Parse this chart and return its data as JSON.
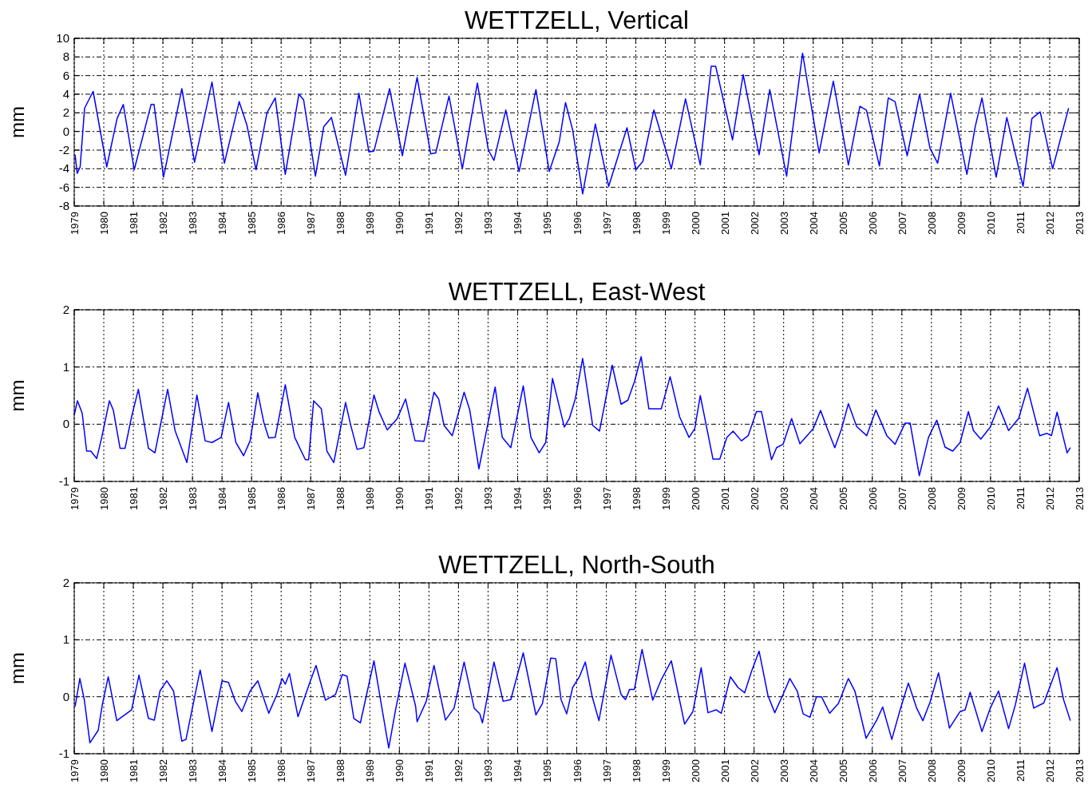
{
  "chart_data": [
    {
      "type": "line",
      "title": "WETTZELL, Vertical",
      "ylabel": "mm",
      "color": "#0000ff",
      "grid": true,
      "line_style": "solid",
      "xlim": [
        1979,
        2013
      ],
      "xticks": [
        1979,
        1980,
        1981,
        1982,
        1983,
        1984,
        1985,
        1986,
        1987,
        1988,
        1989,
        1990,
        1991,
        1992,
        1993,
        1994,
        1995,
        1996,
        1997,
        1998,
        1999,
        2000,
        2001,
        2002,
        2003,
        2004,
        2005,
        2006,
        2007,
        2008,
        2009,
        2010,
        2011,
        2012,
        2013
      ],
      "ylim": [
        -8,
        10
      ],
      "yticks": [
        -8,
        -6,
        -4,
        -2,
        0,
        2,
        4,
        6,
        8,
        10
      ],
      "x": [
        1979.03,
        1979.1,
        1979.2,
        1979.35,
        1979.64,
        1980.1,
        1980.45,
        1980.66,
        1981.03,
        1981.6,
        1981.7,
        1982.02,
        1982.64,
        1983.07,
        1983.66,
        1984.08,
        1984.58,
        1984.84,
        1985.15,
        1985.52,
        1985.8,
        1986.14,
        1986.6,
        1986.76,
        1987.16,
        1987.44,
        1987.7,
        1988.18,
        1988.63,
        1988.97,
        1989.14,
        1989.67,
        1990.1,
        1990.6,
        1991.06,
        1991.23,
        1991.68,
        1992.13,
        1992.64,
        1993.01,
        1993.2,
        1993.6,
        1994.05,
        1994.62,
        1995.07,
        1995.41,
        1995.62,
        1995.86,
        1996.2,
        1996.63,
        1997.08,
        1997.7,
        1998.0,
        1998.24,
        1998.61,
        1999.2,
        1999.68,
        2000.18,
        2000.55,
        2000.7,
        2001.27,
        2001.63,
        2002.17,
        2002.53,
        2003.1,
        2003.64,
        2004.2,
        2004.68,
        2005.19,
        2005.58,
        2005.8,
        2006.24,
        2006.54,
        2006.77,
        2007.18,
        2007.6,
        2007.95,
        2008.21,
        2008.65,
        2009.2,
        2009.48,
        2009.71,
        2010.19,
        2010.55,
        2011.1,
        2011.4,
        2011.68,
        2012.1,
        2012.64
      ],
      "values": [
        -2.5,
        -4.5,
        -3.8,
        2.5,
        4.3,
        -3.8,
        1.4,
        2.9,
        -4.1,
        2.9,
        2.9,
        -4.9,
        4.6,
        -3.3,
        5.3,
        -3.4,
        3.2,
        0.7,
        -4.1,
        2.0,
        3.6,
        -4.6,
        4.0,
        3.4,
        -4.8,
        0.5,
        1.5,
        -4.7,
        4.1,
        -2.2,
        -2.1,
        4.6,
        -2.6,
        5.8,
        -2.4,
        -2.3,
        3.8,
        -4.0,
        5.2,
        -2.0,
        -3.1,
        2.3,
        -4.3,
        4.5,
        -4.3,
        -1.1,
        3.1,
        0.2,
        -6.7,
        0.8,
        -5.9,
        0.4,
        -4.1,
        -3.2,
        2.3,
        -4.0,
        3.5,
        -3.6,
        7.0,
        7.0,
        -0.9,
        6.1,
        -2.5,
        4.5,
        -4.8,
        8.4,
        -2.3,
        5.4,
        -3.6,
        2.7,
        2.3,
        -3.7,
        3.6,
        3.2,
        -2.6,
        4.0,
        -1.8,
        -3.4,
        4.1,
        -4.6,
        0.5,
        3.6,
        -4.9,
        1.5,
        -5.9,
        1.4,
        2.1,
        -4.0,
        2.5
      ]
    },
    {
      "type": "line",
      "title": "WETTZELL, East-West",
      "ylabel": "mm",
      "color": "#0000ff",
      "grid": true,
      "line_style": "solid",
      "xlim": [
        1979,
        2013
      ],
      "xticks": [
        1979,
        1980,
        1981,
        1982,
        1983,
        1984,
        1985,
        1986,
        1987,
        1988,
        1989,
        1990,
        1991,
        1992,
        1993,
        1994,
        1995,
        1996,
        1997,
        1998,
        1999,
        2000,
        2001,
        2002,
        2003,
        2004,
        2005,
        2006,
        2007,
        2008,
        2009,
        2010,
        2011,
        2012,
        2013
      ],
      "ylim": [
        -1,
        2
      ],
      "yticks": [
        -1,
        0,
        1,
        2
      ],
      "x": [
        1979.0,
        1979.11,
        1979.27,
        1979.42,
        1979.56,
        1979.76,
        1979.93,
        1980.19,
        1980.32,
        1980.55,
        1980.72,
        1980.94,
        1981.17,
        1981.51,
        1981.73,
        1982.16,
        1982.41,
        1982.81,
        1983.15,
        1983.43,
        1983.66,
        1983.97,
        1984.22,
        1984.47,
        1984.73,
        1984.95,
        1985.21,
        1985.41,
        1985.58,
        1985.8,
        1986.14,
        1986.46,
        1986.82,
        1986.93,
        1987.1,
        1987.36,
        1987.55,
        1987.78,
        1988.18,
        1988.34,
        1988.57,
        1988.8,
        1989.14,
        1989.31,
        1989.59,
        1989.93,
        1990.21,
        1990.53,
        1990.83,
        1991.17,
        1991.33,
        1991.51,
        1991.79,
        1992.19,
        1992.38,
        1992.69,
        1993.24,
        1993.48,
        1993.77,
        1994.19,
        1994.45,
        1994.73,
        1994.95,
        1995.18,
        1995.58,
        1995.75,
        1995.95,
        1996.2,
        1996.54,
        1996.77,
        1997.2,
        1997.5,
        1997.73,
        1997.95,
        1998.18,
        1998.44,
        1998.86,
        1999.16,
        1999.48,
        1999.8,
        1999.99,
        2000.18,
        2000.61,
        2000.84,
        2001.08,
        2001.29,
        2001.57,
        2001.8,
        2002.08,
        2002.25,
        2002.59,
        2002.76,
        2002.98,
        2003.27,
        2003.55,
        2004.0,
        2004.25,
        2004.45,
        2004.73,
        2004.96,
        2005.19,
        2005.47,
        2005.81,
        2006.12,
        2006.49,
        2006.77,
        2007.11,
        2007.28,
        2007.59,
        2007.9,
        2008.18,
        2008.46,
        2008.72,
        2008.97,
        2009.25,
        2009.42,
        2009.67,
        2009.99,
        2010.27,
        2010.61,
        2010.95,
        2011.25,
        2011.66,
        2011.91,
        2012.06,
        2012.25,
        2012.59,
        2012.7
      ],
      "values": [
        0.16,
        0.41,
        0.19,
        -0.47,
        -0.47,
        -0.6,
        -0.23,
        0.41,
        0.25,
        -0.42,
        -0.42,
        0.13,
        0.61,
        -0.42,
        -0.5,
        0.61,
        -0.11,
        -0.67,
        0.51,
        -0.29,
        -0.32,
        -0.23,
        0.38,
        -0.32,
        -0.55,
        -0.29,
        0.55,
        0.04,
        -0.24,
        -0.23,
        0.69,
        -0.23,
        -0.62,
        -0.62,
        0.41,
        0.27,
        -0.47,
        -0.67,
        0.38,
        0.01,
        -0.44,
        -0.41,
        0.51,
        0.22,
        -0.1,
        0.1,
        0.44,
        -0.29,
        -0.3,
        0.56,
        0.44,
        -0.02,
        -0.2,
        0.56,
        0.25,
        -0.78,
        0.65,
        -0.23,
        -0.41,
        0.67,
        -0.23,
        -0.5,
        -0.32,
        0.8,
        -0.05,
        0.1,
        0.44,
        1.15,
        -0.02,
        -0.12,
        1.03,
        0.35,
        0.42,
        0.74,
        1.18,
        0.27,
        0.27,
        0.83,
        0.13,
        -0.23,
        -0.08,
        0.5,
        -0.61,
        -0.61,
        -0.23,
        -0.12,
        -0.29,
        -0.2,
        0.22,
        0.22,
        -0.62,
        -0.41,
        -0.35,
        0.1,
        -0.34,
        -0.08,
        0.24,
        -0.04,
        -0.41,
        -0.08,
        0.36,
        -0.04,
        -0.2,
        0.25,
        -0.2,
        -0.35,
        0.02,
        0.02,
        -0.9,
        -0.23,
        0.07,
        -0.4,
        -0.47,
        -0.32,
        0.22,
        -0.11,
        -0.26,
        -0.05,
        0.32,
        -0.11,
        0.1,
        0.63,
        -0.2,
        -0.16,
        -0.2,
        0.21,
        -0.5,
        -0.41
      ]
    },
    {
      "type": "line",
      "title": "WETTZELL, North-South",
      "ylabel": "mm",
      "color": "#0000ff",
      "grid": true,
      "line_style": "solid",
      "xlim": [
        1979,
        2013
      ],
      "xticks": [
        1979,
        1980,
        1981,
        1982,
        1983,
        1984,
        1985,
        1986,
        1987,
        1988,
        1989,
        1990,
        1991,
        1992,
        1993,
        1994,
        1995,
        1996,
        1997,
        1998,
        1999,
        2000,
        2001,
        2002,
        2003,
        2004,
        2005,
        2006,
        2007,
        2008,
        2009,
        2010,
        2011,
        2012,
        2013
      ],
      "ylim": [
        -1,
        2
      ],
      "yticks": [
        -1,
        0,
        1,
        2
      ],
      "x": [
        1979.03,
        1979.19,
        1979.34,
        1979.53,
        1979.81,
        1979.95,
        1980.15,
        1980.44,
        1980.94,
        1981.19,
        1981.51,
        1981.71,
        1981.9,
        1982.13,
        1982.36,
        1982.64,
        1982.78,
        1983.26,
        1983.66,
        1984.0,
        1984.22,
        1984.45,
        1984.67,
        1984.95,
        1985.21,
        1985.58,
        1985.86,
        1986.03,
        1986.14,
        1986.28,
        1986.57,
        1986.93,
        1987.18,
        1987.5,
        1987.84,
        1988.07,
        1988.23,
        1988.46,
        1988.68,
        1989.14,
        1989.42,
        1989.64,
        1989.87,
        1990.19,
        1990.55,
        1990.6,
        1990.91,
        1991.17,
        1991.56,
        1991.85,
        1992.19,
        1992.53,
        1992.72,
        1992.81,
        1993.2,
        1993.51,
        1993.77,
        1994.19,
        1994.62,
        1994.84,
        1995.12,
        1995.29,
        1995.47,
        1995.66,
        1995.86,
        1996.09,
        1996.29,
        1996.52,
        1996.75,
        1997.16,
        1997.5,
        1997.65,
        1997.79,
        1997.95,
        1998.21,
        1998.57,
        1998.86,
        1999.2,
        1999.65,
        1999.93,
        2000.21,
        2000.44,
        2000.72,
        2000.89,
        2001.2,
        2001.46,
        2001.68,
        2001.91,
        2002.17,
        2002.47,
        2002.7,
        2002.98,
        2003.21,
        2003.46,
        2003.66,
        2003.89,
        2004.11,
        2004.28,
        2004.56,
        2004.85,
        2005.19,
        2005.41,
        2005.79,
        2006.15,
        2006.35,
        2006.66,
        2006.94,
        2007.22,
        2007.5,
        2007.71,
        2007.95,
        2008.24,
        2008.61,
        2008.97,
        2009.14,
        2009.31,
        2009.71,
        2009.99,
        2010.27,
        2010.61,
        2010.84,
        2011.15,
        2011.46,
        2011.8,
        2012.25,
        2012.47,
        2012.7
      ],
      "values": [
        -0.17,
        0.32,
        -0.05,
        -0.81,
        -0.59,
        -0.14,
        0.35,
        -0.42,
        -0.23,
        0.38,
        -0.38,
        -0.41,
        0.1,
        0.28,
        0.1,
        -0.78,
        -0.75,
        0.47,
        -0.61,
        0.28,
        0.25,
        -0.08,
        -0.26,
        0.1,
        0.28,
        -0.29,
        0.04,
        0.32,
        0.22,
        0.41,
        -0.35,
        0.19,
        0.55,
        -0.06,
        0.04,
        0.39,
        0.36,
        -0.38,
        -0.46,
        0.63,
        -0.23,
        -0.9,
        -0.23,
        0.59,
        -0.17,
        -0.44,
        -0.08,
        0.55,
        -0.41,
        -0.2,
        0.61,
        -0.2,
        -0.3,
        -0.46,
        0.61,
        -0.08,
        -0.05,
        0.77,
        -0.32,
        -0.12,
        0.68,
        0.67,
        -0.05,
        -0.3,
        0.16,
        0.35,
        0.61,
        0.01,
        -0.42,
        0.73,
        0.04,
        -0.05,
        0.13,
        0.13,
        0.83,
        -0.06,
        0.3,
        0.63,
        -0.48,
        -0.26,
        0.51,
        -0.28,
        -0.23,
        -0.29,
        0.35,
        0.16,
        0.07,
        0.44,
        0.8,
        0.02,
        -0.28,
        0.04,
        0.32,
        0.1,
        -0.3,
        -0.36,
        0.0,
        0.0,
        -0.29,
        -0.12,
        0.32,
        0.1,
        -0.73,
        -0.41,
        -0.18,
        -0.75,
        -0.23,
        0.24,
        -0.2,
        -0.42,
        -0.1,
        0.42,
        -0.55,
        -0.26,
        -0.23,
        0.08,
        -0.61,
        -0.2,
        0.1,
        -0.56,
        -0.14,
        0.59,
        -0.2,
        -0.11,
        0.51,
        -0.05,
        -0.42
      ]
    }
  ]
}
